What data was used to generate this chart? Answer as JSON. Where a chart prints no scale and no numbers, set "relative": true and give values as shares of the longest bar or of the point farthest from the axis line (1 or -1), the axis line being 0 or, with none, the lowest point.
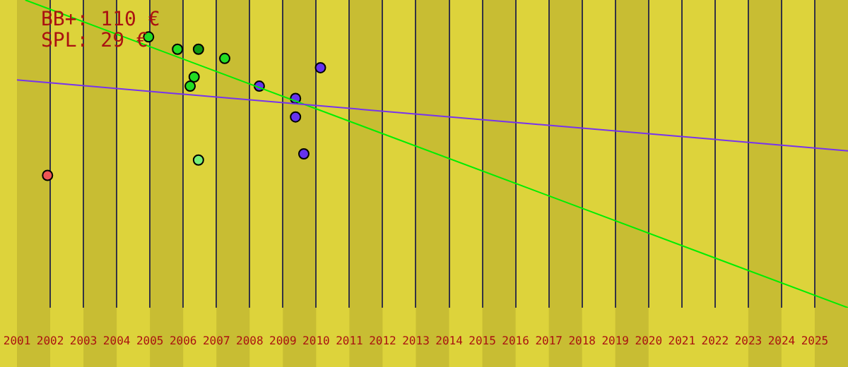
{
  "chart_data": {
    "type": "scatter",
    "relative": true,
    "annotations": [
      "BB+: 110 €",
      "SPL: 29 €"
    ],
    "xlim": [
      2001,
      2026
    ],
    "xticks": [
      2001,
      2002,
      2003,
      2004,
      2005,
      2006,
      2007,
      2008,
      2009,
      2010,
      2011,
      2012,
      2013,
      2014,
      2015,
      2016,
      2017,
      2018,
      2019,
      2020,
      2021,
      2022,
      2023,
      2024,
      2025
    ],
    "grid": "x",
    "tick_labels": "x",
    "bands": [
      {
        "axis": "x",
        "from": 2001,
        "to": 2002,
        "color": "#c8bd33"
      },
      {
        "axis": "x",
        "from": 2003,
        "to": 2004,
        "color": "#c8bd33"
      },
      {
        "axis": "x",
        "from": 2005,
        "to": 2006,
        "color": "#c8bd33"
      },
      {
        "axis": "x",
        "from": 2007,
        "to": 2008,
        "color": "#c8bd33"
      },
      {
        "axis": "x",
        "from": 2009,
        "to": 2010,
        "color": "#c8bd33"
      },
      {
        "axis": "x",
        "from": 2011,
        "to": 2012,
        "color": "#c8bd33"
      },
      {
        "axis": "x",
        "from": 2013,
        "to": 2014,
        "color": "#c8bd33"
      },
      {
        "axis": "x",
        "from": 2015,
        "to": 2016,
        "color": "#c8bd33"
      },
      {
        "axis": "x",
        "from": 2017,
        "to": 2018,
        "color": "#c8bd33"
      },
      {
        "axis": "x",
        "from": 2019,
        "to": 2020,
        "color": "#c8bd33"
      },
      {
        "axis": "x",
        "from": 2023,
        "to": 2024,
        "color": "#c8bd33"
      },
      {
        "axis": "x",
        "from": 2025,
        "to": 2026,
        "color": "#c8bd33"
      }
    ],
    "series": [
      {
        "marker": "circle",
        "x": [
          2001.92,
          2004.96,
          2005.83,
          2006.46,
          2007.25,
          2006.33,
          2006.21,
          2006.46,
          2008.29,
          2010.13,
          2009.38,
          2009.38,
          2009.63
        ],
        "values": [
          0.43,
          0.88,
          0.84,
          0.84,
          0.81,
          0.75,
          0.72,
          0.48,
          0.72,
          0.78,
          0.68,
          0.62,
          0.5
        ],
        "colors": [
          "#ee5555",
          "#22dd22",
          "#22dd22",
          "#119911",
          "#22dd22",
          "#22dd22",
          "#22dd22",
          "#77ee77",
          "#6633ee",
          "#6633ee",
          "#6633ee",
          "#6633ee",
          "#6633ee"
        ]
      },
      {
        "type": "line",
        "x": [
          2001.25,
          2026
        ],
        "values": [
          1.0,
          0.0
        ],
        "color": "#00ee00"
      },
      {
        "type": "line",
        "x": [
          2001,
          2026
        ],
        "values": [
          0.74,
          0.51
        ],
        "color": "#7733ee"
      }
    ]
  }
}
